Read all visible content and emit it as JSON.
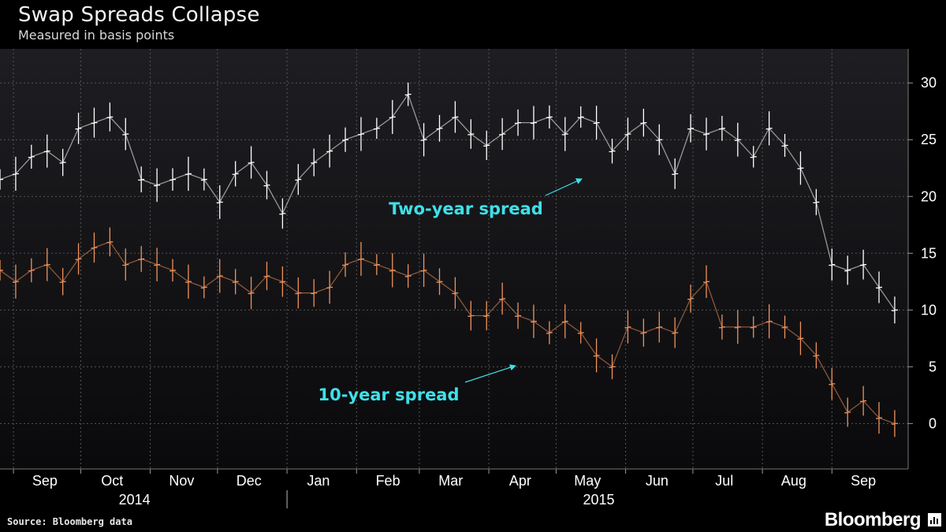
{
  "header": {
    "title": "Swap Spreads Collapse",
    "subtitle": "Measured in basis points"
  },
  "footer": {
    "source": "Source: Bloomberg data",
    "brand": "Bloomberg",
    "brand_icon": "bar-chart-icon"
  },
  "colors": {
    "background": "#000000",
    "plot_background_top": "#1e1e22",
    "plot_background_bottom": "#0a0a0c",
    "two_year_series": "#ffffff",
    "ten_year_series": "#f0925a",
    "annotation": "#3fe0e8",
    "axis_text": "#ffffff",
    "grid": "#555555"
  },
  "chart_data": {
    "type": "line",
    "title": "Swap Spreads Collapse",
    "subtitle": "Measured in basis points",
    "xlabel": "",
    "ylabel": "",
    "ylim": [
      -4,
      33
    ],
    "y_ticks": [
      0,
      5,
      10,
      15,
      20,
      25,
      30
    ],
    "x_range": [
      "2014-08-26",
      "2015-10-05"
    ],
    "x_ticks": [
      {
        "date": "2014-09-15",
        "label": "Sep"
      },
      {
        "date": "2014-10-15",
        "label": "Oct"
      },
      {
        "date": "2014-11-15",
        "label": "Nov"
      },
      {
        "date": "2014-12-15",
        "label": "Dec"
      },
      {
        "date": "2015-01-15",
        "label": "Jan"
      },
      {
        "date": "2015-02-15",
        "label": "Feb"
      },
      {
        "date": "2015-03-15",
        "label": "Mar"
      },
      {
        "date": "2015-04-15",
        "label": "Apr"
      },
      {
        "date": "2015-05-15",
        "label": "May"
      },
      {
        "date": "2015-06-15",
        "label": "Jun"
      },
      {
        "date": "2015-07-15",
        "label": "Jul"
      },
      {
        "date": "2015-08-15",
        "label": "Aug"
      },
      {
        "date": "2015-09-15",
        "label": "Sep"
      }
    ],
    "x_separators": [
      "2014-09-01",
      "2014-10-01",
      "2014-11-01",
      "2014-12-01",
      "2015-01-01",
      "2015-02-01",
      "2015-03-01",
      "2015-04-01",
      "2015-05-01",
      "2015-06-01",
      "2015-07-01",
      "2015-08-01",
      "2015-09-01"
    ],
    "year_labels": [
      {
        "date": "2014-10-25",
        "label": "2014"
      },
      {
        "date": "2015-05-20",
        "label": "2015"
      }
    ],
    "year_divider": "2015-01-01",
    "grid": true,
    "legend": "none",
    "annotations": [
      {
        "text": "Two-year spread",
        "series": "two_year"
      },
      {
        "text": "10-year spread",
        "series": "ten_year"
      }
    ],
    "series": [
      {
        "key": "two_year",
        "style": "hlc-bars",
        "x": [
          "2014-08-26",
          "2014-09-02",
          "2014-09-09",
          "2014-09-16",
          "2014-09-23",
          "2014-09-30",
          "2014-10-07",
          "2014-10-14",
          "2014-10-21",
          "2014-10-28",
          "2014-11-04",
          "2014-11-11",
          "2014-11-18",
          "2014-11-25",
          "2014-12-02",
          "2014-12-09",
          "2014-12-16",
          "2014-12-23",
          "2014-12-30",
          "2015-01-06",
          "2015-01-13",
          "2015-01-20",
          "2015-01-27",
          "2015-02-03",
          "2015-02-10",
          "2015-02-17",
          "2015-02-24",
          "2015-03-03",
          "2015-03-10",
          "2015-03-17",
          "2015-03-24",
          "2015-03-31",
          "2015-04-07",
          "2015-04-14",
          "2015-04-21",
          "2015-04-28",
          "2015-05-05",
          "2015-05-12",
          "2015-05-19",
          "2015-05-26",
          "2015-06-02",
          "2015-06-09",
          "2015-06-16",
          "2015-06-23",
          "2015-06-30",
          "2015-07-07",
          "2015-07-14",
          "2015-07-21",
          "2015-07-28",
          "2015-08-04",
          "2015-08-11",
          "2015-08-18",
          "2015-08-25",
          "2015-09-01",
          "2015-09-08",
          "2015-09-15",
          "2015-09-22",
          "2015-09-29"
        ],
        "values": [
          21.5,
          22.0,
          23.5,
          24.0,
          23.0,
          26.0,
          26.5,
          27.0,
          25.5,
          21.5,
          21.0,
          21.5,
          22.0,
          21.5,
          19.5,
          22.0,
          23.0,
          21.0,
          18.5,
          21.5,
          23.0,
          24.0,
          25.0,
          25.5,
          26.0,
          27.0,
          29.0,
          25.0,
          26.0,
          27.0,
          25.5,
          24.5,
          25.5,
          26.5,
          26.5,
          27.0,
          25.5,
          27.0,
          26.5,
          24.0,
          25.5,
          26.5,
          25.0,
          22.0,
          26.0,
          25.5,
          26.0,
          25.0,
          23.5,
          26.0,
          24.5,
          22.5,
          19.5,
          14.0,
          13.5,
          14.0,
          12.0,
          10.0
        ]
      },
      {
        "key": "ten_year",
        "style": "hlc-bars",
        "x": [
          "2014-08-26",
          "2014-09-02",
          "2014-09-09",
          "2014-09-16",
          "2014-09-23",
          "2014-09-30",
          "2014-10-07",
          "2014-10-14",
          "2014-10-21",
          "2014-10-28",
          "2014-11-04",
          "2014-11-11",
          "2014-11-18",
          "2014-11-25",
          "2014-12-02",
          "2014-12-09",
          "2014-12-16",
          "2014-12-23",
          "2014-12-30",
          "2015-01-06",
          "2015-01-13",
          "2015-01-20",
          "2015-01-27",
          "2015-02-03",
          "2015-02-10",
          "2015-02-17",
          "2015-02-24",
          "2015-03-03",
          "2015-03-10",
          "2015-03-17",
          "2015-03-24",
          "2015-03-31",
          "2015-04-07",
          "2015-04-14",
          "2015-04-21",
          "2015-04-28",
          "2015-05-05",
          "2015-05-12",
          "2015-05-19",
          "2015-05-26",
          "2015-06-02",
          "2015-06-09",
          "2015-06-16",
          "2015-06-23",
          "2015-06-30",
          "2015-07-07",
          "2015-07-14",
          "2015-07-21",
          "2015-07-28",
          "2015-08-04",
          "2015-08-11",
          "2015-08-18",
          "2015-08-25",
          "2015-09-01",
          "2015-09-08",
          "2015-09-15",
          "2015-09-22",
          "2015-09-29"
        ],
        "values": [
          13.5,
          12.5,
          13.5,
          14.0,
          12.5,
          14.5,
          15.5,
          16.0,
          14.0,
          14.5,
          14.0,
          13.5,
          12.5,
          12.0,
          13.0,
          12.5,
          11.5,
          13.0,
          12.5,
          11.5,
          11.5,
          12.0,
          14.0,
          14.5,
          14.0,
          13.5,
          13.0,
          13.5,
          12.5,
          11.5,
          9.5,
          9.5,
          11.0,
          9.5,
          9.0,
          8.0,
          9.0,
          8.0,
          6.0,
          5.0,
          8.5,
          8.0,
          8.5,
          8.0,
          11.0,
          12.5,
          8.5,
          8.5,
          8.5,
          9.0,
          8.5,
          7.5,
          6.0,
          3.5,
          1.0,
          2.0,
          0.5,
          0.0
        ]
      }
    ]
  }
}
